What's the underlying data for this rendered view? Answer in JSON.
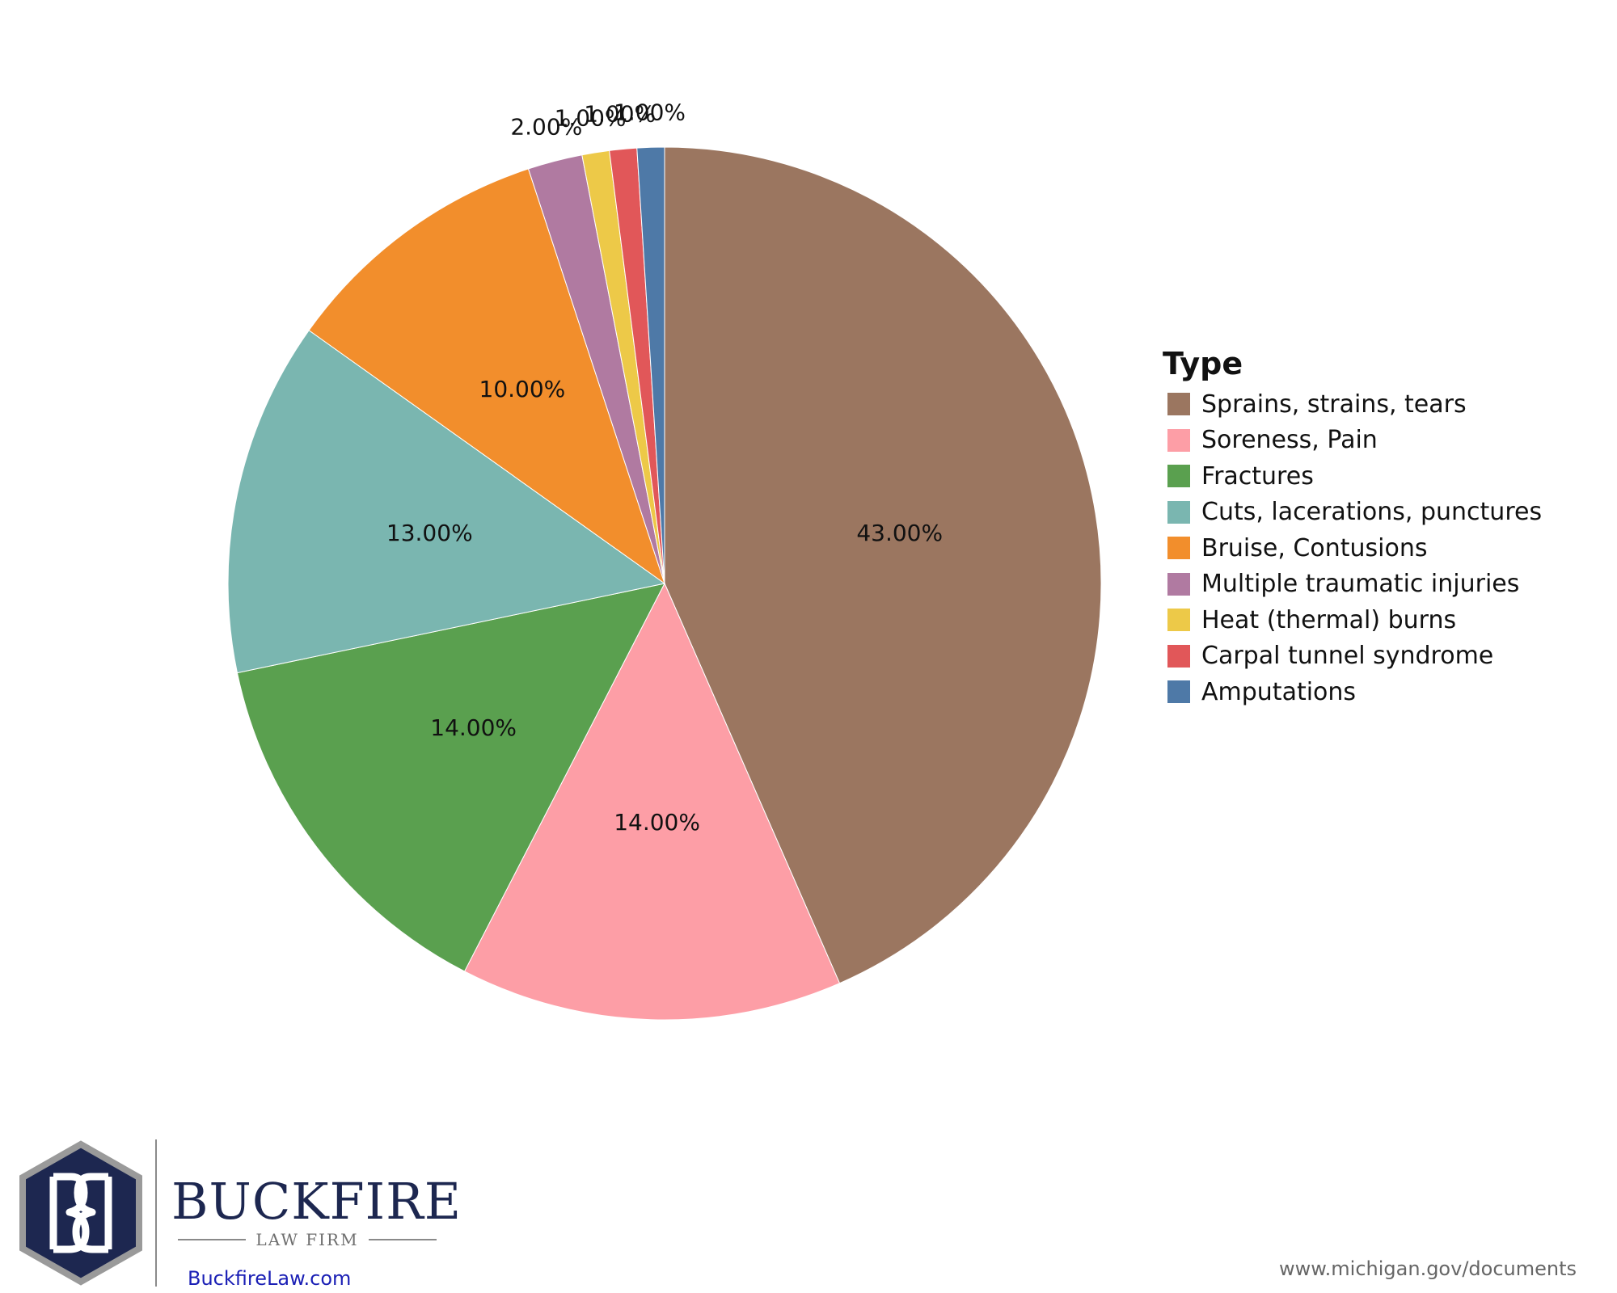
{
  "chart_data": {
    "type": "pie",
    "legend_title": "Type",
    "legend_position": "right",
    "slices": [
      {
        "label": "Sprains, strains, tears",
        "value": 43.0,
        "display": "43.00%",
        "color": "#9b7660"
      },
      {
        "label": "Soreness, Pain",
        "value": 14.0,
        "display": "14.00%",
        "color": "#fd9ea6"
      },
      {
        "label": "Fractures",
        "value": 14.0,
        "display": "14.00%",
        "color": "#5aa04f"
      },
      {
        "label": "Cuts, lacerations, punctures",
        "value": 13.0,
        "display": "13.00%",
        "color": "#7ab6b0"
      },
      {
        "label": "Bruise, Contusions",
        "value": 10.0,
        "display": "10.00%",
        "color": "#f28e2c"
      },
      {
        "label": "Multiple traumatic injuries",
        "value": 2.0,
        "display": "2.00%",
        "color": "#b07aa1"
      },
      {
        "label": "Heat (thermal) burns",
        "value": 1.0,
        "display": "1.00%",
        "color": "#edc948"
      },
      {
        "label": "Carpal tunnel syndrome",
        "value": 1.0,
        "display": "1.00%",
        "color": "#e15759"
      },
      {
        "label": "Amputations",
        "value": 1.0,
        "display": "1.00%",
        "color": "#4e79a7"
      }
    ]
  },
  "branding": {
    "logo_name": "BUCKFIRE",
    "logo_subtitle": "LAW FIRM",
    "logo_url": "BuckfireLaw.com",
    "logo_color": "#1d2750"
  },
  "source_text": "www.michigan.gov/documents"
}
